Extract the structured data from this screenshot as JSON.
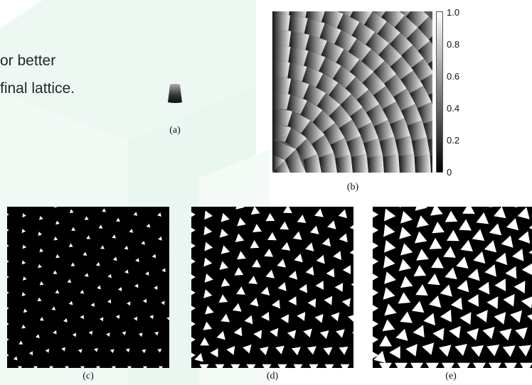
{
  "slide": {
    "line1": "or better",
    "line2": " final lattice."
  },
  "figure": {
    "captions": {
      "a": "(a)",
      "b": "(b)",
      "c": "(c)",
      "d": "(d)",
      "e": "(e)"
    },
    "colorbar_ticks": [
      "1.0",
      "0.8",
      "0.6",
      "0.4",
      "0.2",
      "0"
    ],
    "colors": {
      "background_accent": "#e9f5f0",
      "panel": "#000000",
      "motif": "#ffffff"
    }
  }
}
